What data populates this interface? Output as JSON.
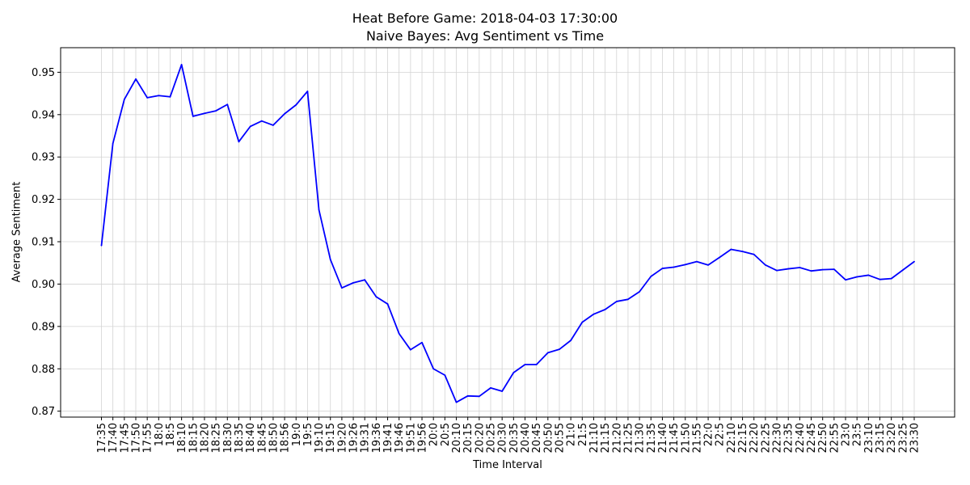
{
  "chart_data": {
    "type": "line",
    "title": "Heat Before Game: 2018-04-03 17:30:00",
    "subtitle": "Naive Bayes: Avg Sentiment vs Time",
    "xlabel": "Time Interval",
    "ylabel": "Average Sentiment",
    "ylim": [
      0.8686,
      0.9558
    ],
    "yticks": [
      0.87,
      0.88,
      0.89,
      0.9,
      0.91,
      0.92,
      0.93,
      0.94,
      0.95
    ],
    "ytick_labels": [
      "0.87",
      "0.88",
      "0.89",
      "0.90",
      "0.91",
      "0.92",
      "0.93",
      "0.94",
      "0.95"
    ],
    "grid": true,
    "line_color": "#0000ff",
    "categories": [
      "17:35",
      "17:40",
      "17:45",
      "17:50",
      "17:55",
      "18:0",
      "18:5",
      "18:10",
      "18:15",
      "18:20",
      "18:25",
      "18:30",
      "18:35",
      "18:40",
      "18:45",
      "18:50",
      "18:56",
      "19:0",
      "19:5",
      "19:10",
      "19:15",
      "19:20",
      "19:26",
      "19:31",
      "19:36",
      "19:41",
      "19:46",
      "19:51",
      "19:56",
      "20:0",
      "20:5",
      "20:10",
      "20:15",
      "20:20",
      "20:25",
      "20:30",
      "20:35",
      "20:40",
      "20:45",
      "20:50",
      "20:55",
      "21:0",
      "21:5",
      "21:10",
      "21:15",
      "21:20",
      "21:25",
      "21:30",
      "21:35",
      "21:40",
      "21:45",
      "21:50",
      "21:55",
      "22:0",
      "22:5",
      "22:10",
      "22:15",
      "22:20",
      "22:25",
      "22:30",
      "22:35",
      "22:40",
      "22:45",
      "22:50",
      "22:55",
      "23:0",
      "23:5",
      "23:10",
      "23:15",
      "23:20",
      "23:25",
      "23:30"
    ],
    "series": [
      {
        "values": [
          0.9091,
          0.9332,
          0.9436,
          0.9484,
          0.944,
          0.9445,
          0.9442,
          0.9518,
          0.9396,
          0.9403,
          0.9409,
          0.9424,
          0.9336,
          0.9372,
          0.9385,
          0.9375,
          0.9402,
          0.9423,
          0.9455,
          0.9175,
          0.9058,
          0.8991,
          0.9003,
          0.901,
          0.897,
          0.8953,
          0.8883,
          0.8845,
          0.8862,
          0.88,
          0.8785,
          0.8721,
          0.8736,
          0.8735,
          0.8755,
          0.8747,
          0.8791,
          0.881,
          0.881,
          0.8838,
          0.8846,
          0.8867,
          0.891,
          0.8929,
          0.894,
          0.8959,
          0.8964,
          0.8982,
          0.9018,
          0.9037,
          0.904,
          0.9046,
          0.9053,
          0.9045,
          0.9063,
          0.9082,
          0.9077,
          0.907,
          0.9045,
          0.9032,
          0.9036,
          0.9039,
          0.9031,
          0.9034,
          0.9035,
          0.901,
          0.9017,
          0.9021,
          0.9011,
          0.9013,
          0.9033,
          0.9053
        ]
      }
    ]
  }
}
